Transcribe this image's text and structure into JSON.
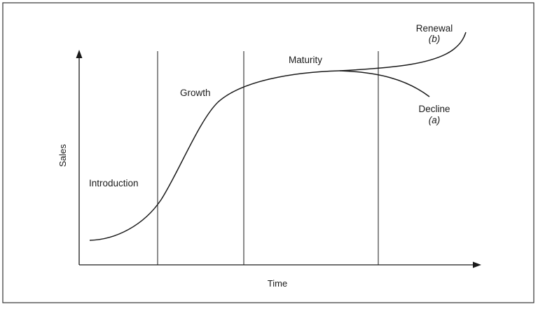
{
  "diagram": {
    "axes": {
      "y_label": "Sales",
      "x_label": "Time"
    },
    "stages": [
      {
        "id": "introduction",
        "label": "Introduction"
      },
      {
        "id": "growth",
        "label": "Growth"
      },
      {
        "id": "maturity",
        "label": "Maturity"
      }
    ],
    "outcomes": [
      {
        "id": "renewal",
        "label": "Renewal",
        "tag": "(b)"
      },
      {
        "id": "decline",
        "label": "Decline",
        "tag": "(a)"
      }
    ],
    "colors": {
      "line": "#1a1a1a",
      "frame": "#333333",
      "background": "#ffffff"
    }
  }
}
